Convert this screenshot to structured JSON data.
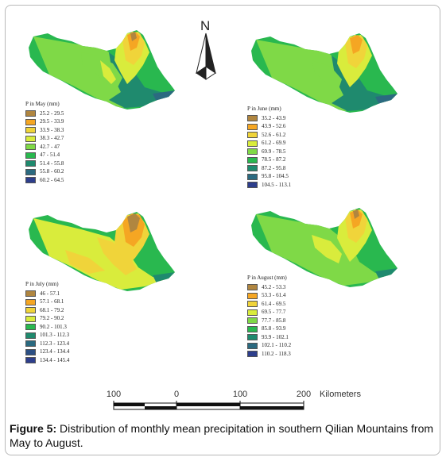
{
  "north_label": "N",
  "maps": [
    {
      "id": "may",
      "legend_title": "P in May (mm)",
      "classes": [
        {
          "label": "25.2 - 29.5",
          "color": "#b08640"
        },
        {
          "label": "29.5 - 33.9",
          "color": "#f5a623"
        },
        {
          "label": "33.9 - 38.3",
          "color": "#f0d43a"
        },
        {
          "label": "38.3 - 42.7",
          "color": "#d9ec3c"
        },
        {
          "label": "42.7 - 47",
          "color": "#7fd947"
        },
        {
          "label": "47 - 51.4",
          "color": "#29b84f"
        },
        {
          "label": "51.4 - 55.8",
          "color": "#1f8a6e"
        },
        {
          "label": "55.8 - 60.2",
          "color": "#2b6a80"
        },
        {
          "label": "60.2 - 64.5",
          "color": "#2d3e8c"
        }
      ]
    },
    {
      "id": "june",
      "legend_title": "P in June (mm)",
      "classes": [
        {
          "label": "35.2 - 43.9",
          "color": "#b08640"
        },
        {
          "label": "43.9 - 52.6",
          "color": "#f5a623"
        },
        {
          "label": "52.6 - 61.2",
          "color": "#f0d43a"
        },
        {
          "label": "61.2 - 69.9",
          "color": "#d9ec3c"
        },
        {
          "label": "69.9 - 78.5",
          "color": "#7fd947"
        },
        {
          "label": "78.5 - 87.2",
          "color": "#29b84f"
        },
        {
          "label": "87.2 - 95.8",
          "color": "#1f8a6e"
        },
        {
          "label": "95.8 - 104.5",
          "color": "#2b6a80"
        },
        {
          "label": "104.5 - 113.1",
          "color": "#2d3e8c"
        }
      ]
    },
    {
      "id": "july",
      "legend_title": "P in July (mm)",
      "classes": [
        {
          "label": "46 - 57.1",
          "color": "#b08640"
        },
        {
          "label": "57.1 - 68.1",
          "color": "#f5a623"
        },
        {
          "label": "68.1 - 79.2",
          "color": "#f0d43a"
        },
        {
          "label": "79.2 - 90.2",
          "color": "#d9ec3c"
        },
        {
          "label": "90.2 - 101.3",
          "color": "#29b84f"
        },
        {
          "label": "101.3 - 112.3",
          "color": "#1f8a6e"
        },
        {
          "label": "112.3 - 123.4",
          "color": "#2b6a80"
        },
        {
          "label": "123.4 - 134.4",
          "color": "#2b4f84"
        },
        {
          "label": "134.4 - 145.4",
          "color": "#2d3e8c"
        }
      ]
    },
    {
      "id": "august",
      "legend_title": "P in August (mm)",
      "classes": [
        {
          "label": "45.2 - 53.3",
          "color": "#b08640"
        },
        {
          "label": "53.3 - 61.4",
          "color": "#f5a623"
        },
        {
          "label": "61.4 - 69.5",
          "color": "#f0d43a"
        },
        {
          "label": "69.5 - 77.7",
          "color": "#d9ec3c"
        },
        {
          "label": "77.7 - 85.8",
          "color": "#7fd947"
        },
        {
          "label": "85.8 - 93.9",
          "color": "#29b84f"
        },
        {
          "label": "93.9 - 102.1",
          "color": "#1f8a6e"
        },
        {
          "label": "102.1 - 110.2",
          "color": "#2b6a80"
        },
        {
          "label": "110.2 - 118.3",
          "color": "#2d3e8c"
        }
      ]
    }
  ],
  "scale_bar": {
    "ticks": [
      "100",
      "0",
      "100",
      "200"
    ],
    "unit": "Kilometers"
  },
  "caption": {
    "label": "Figure 5:",
    "text": " Distribution of monthly mean precipitation in southern Qilian Mountains from May to August."
  }
}
